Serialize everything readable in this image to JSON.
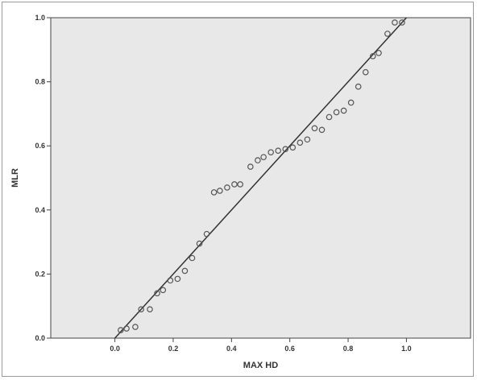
{
  "chart_data": {
    "type": "scatter",
    "title": "",
    "xlabel": "MAX HD",
    "ylabel": "MLR",
    "xlim": [
      -0.22,
      1.22
    ],
    "ylim": [
      0.0,
      1.0
    ],
    "x_ticks": [
      "0.0",
      "0.2",
      "0.4",
      "0.6",
      "0.8",
      "1.0"
    ],
    "y_ticks": [
      "0.0",
      "0.2",
      "0.4",
      "0.6",
      "0.8",
      "1.0"
    ],
    "x_tick_values": [
      0.0,
      0.2,
      0.4,
      0.6,
      0.8,
      1.0
    ],
    "y_tick_values": [
      0.0,
      0.2,
      0.4,
      0.6,
      0.8,
      1.0
    ],
    "grid": false,
    "background": "#e8e8e8",
    "marker_color": "#555555",
    "line_color": "#333333",
    "reference_line": {
      "from": [
        0.0,
        0.0
      ],
      "to": [
        1.0,
        1.0
      ]
    },
    "points": [
      {
        "x": 0.02,
        "y": 0.025
      },
      {
        "x": 0.04,
        "y": 0.03
      },
      {
        "x": 0.07,
        "y": 0.035
      },
      {
        "x": 0.09,
        "y": 0.09
      },
      {
        "x": 0.12,
        "y": 0.09
      },
      {
        "x": 0.145,
        "y": 0.14
      },
      {
        "x": 0.165,
        "y": 0.15
      },
      {
        "x": 0.19,
        "y": 0.18
      },
      {
        "x": 0.215,
        "y": 0.185
      },
      {
        "x": 0.24,
        "y": 0.21
      },
      {
        "x": 0.265,
        "y": 0.25
      },
      {
        "x": 0.29,
        "y": 0.295
      },
      {
        "x": 0.315,
        "y": 0.325
      },
      {
        "x": 0.34,
        "y": 0.455
      },
      {
        "x": 0.36,
        "y": 0.46
      },
      {
        "x": 0.385,
        "y": 0.47
      },
      {
        "x": 0.41,
        "y": 0.48
      },
      {
        "x": 0.43,
        "y": 0.48
      },
      {
        "x": 0.465,
        "y": 0.535
      },
      {
        "x": 0.49,
        "y": 0.555
      },
      {
        "x": 0.51,
        "y": 0.565
      },
      {
        "x": 0.535,
        "y": 0.58
      },
      {
        "x": 0.56,
        "y": 0.585
      },
      {
        "x": 0.585,
        "y": 0.59
      },
      {
        "x": 0.61,
        "y": 0.595
      },
      {
        "x": 0.635,
        "y": 0.61
      },
      {
        "x": 0.66,
        "y": 0.62
      },
      {
        "x": 0.685,
        "y": 0.655
      },
      {
        "x": 0.71,
        "y": 0.65
      },
      {
        "x": 0.735,
        "y": 0.69
      },
      {
        "x": 0.76,
        "y": 0.705
      },
      {
        "x": 0.785,
        "y": 0.71
      },
      {
        "x": 0.81,
        "y": 0.735
      },
      {
        "x": 0.835,
        "y": 0.785
      },
      {
        "x": 0.86,
        "y": 0.83
      },
      {
        "x": 0.885,
        "y": 0.88
      },
      {
        "x": 0.905,
        "y": 0.89
      },
      {
        "x": 0.935,
        "y": 0.95
      },
      {
        "x": 0.96,
        "y": 0.985
      },
      {
        "x": 0.985,
        "y": 0.985
      }
    ]
  }
}
